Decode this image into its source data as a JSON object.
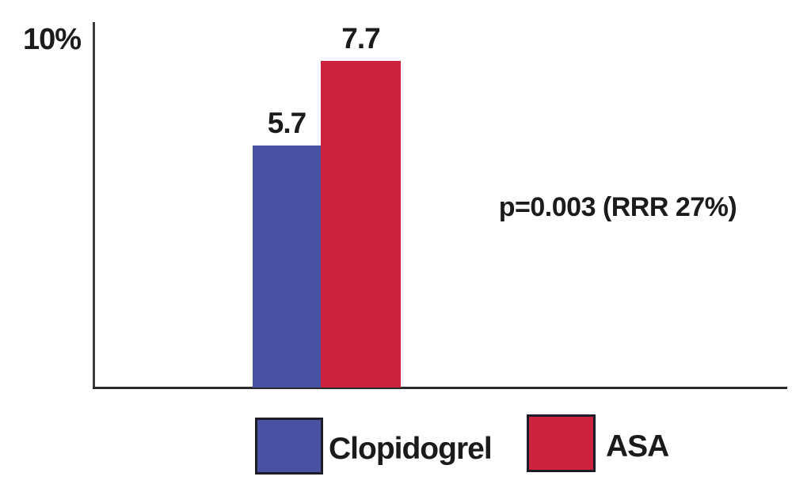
{
  "chart_data": {
    "type": "bar",
    "categories": [
      "Clopidogrel",
      "ASA"
    ],
    "values": [
      5.7,
      7.7
    ],
    "value_labels": [
      "5.7",
      "7.7"
    ],
    "colors": [
      "#4a52a4",
      "#ce2340"
    ],
    "title": "",
    "xlabel": "",
    "ylabel": "",
    "ylim": [
      0,
      10
    ],
    "y_axis_top_label": "10%",
    "grid": false,
    "annotation": "p=0.003 (RRR 27%)",
    "legend_position": "bottom",
    "legend": [
      {
        "label": "Clopidogrel",
        "color": "#4a52a4"
      },
      {
        "label": "ASA",
        "color": "#ce2340"
      }
    ]
  }
}
